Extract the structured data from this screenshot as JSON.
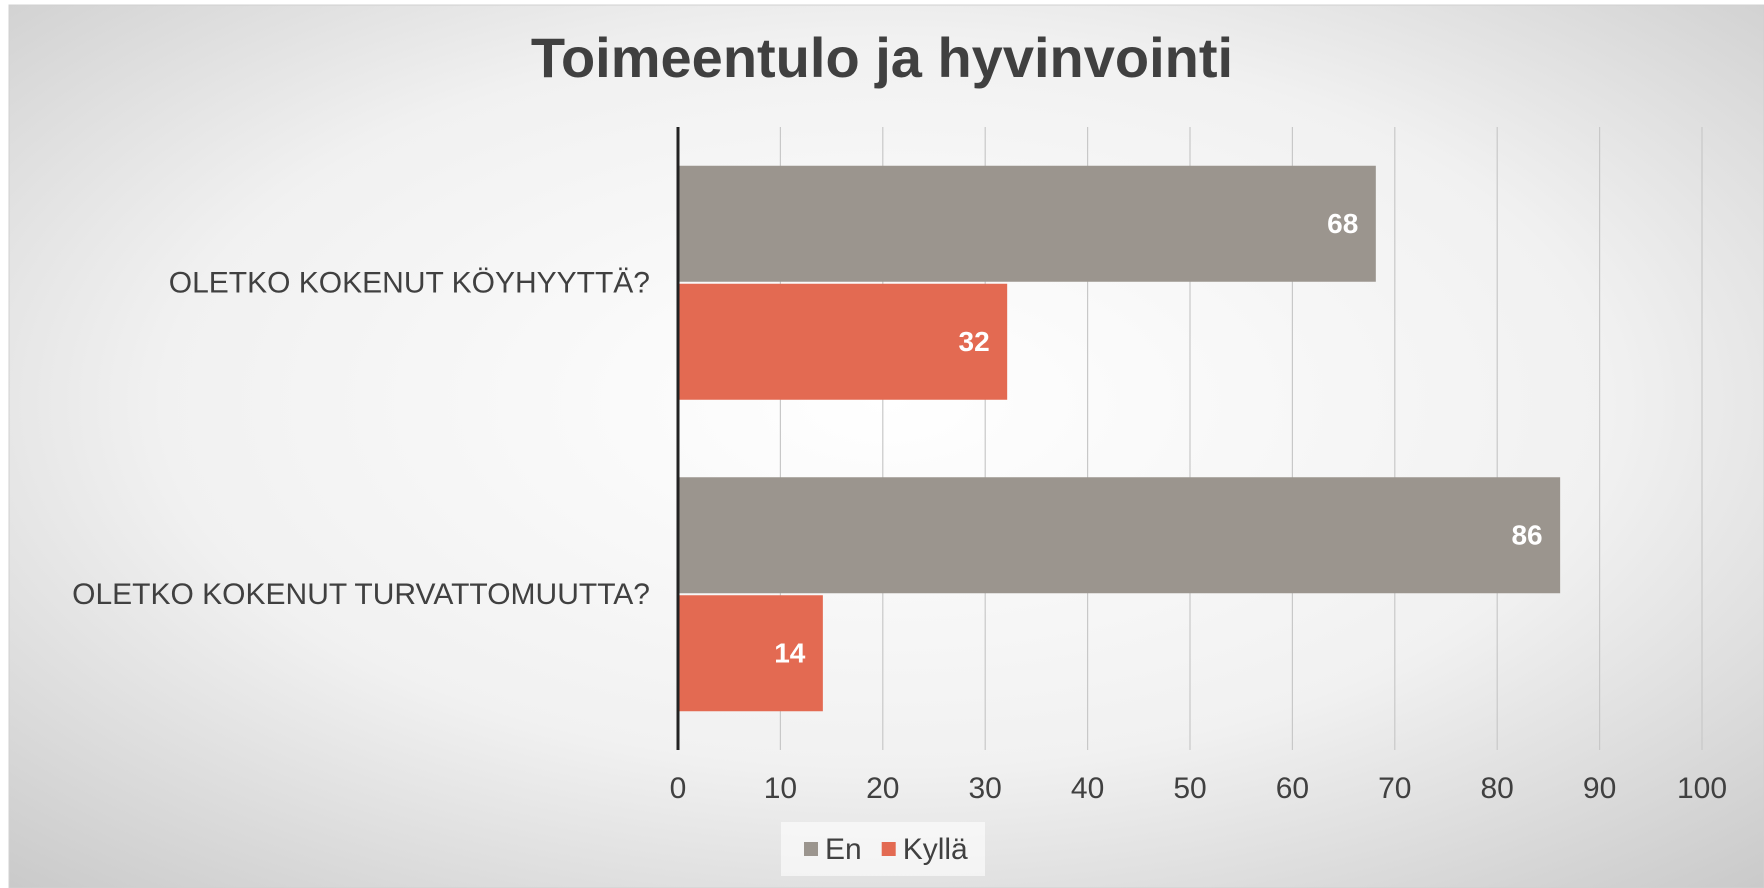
{
  "chart_data": {
    "type": "hbar",
    "title": "Toimeentulo ja hyvinvointi",
    "categories": [
      "OLETKO KOKENUT KÖYHYYTTÄ?",
      "OLETKO KOKENUT TURVATTOMUUTTA?"
    ],
    "series": [
      {
        "name": "En",
        "color": "#9b958e",
        "values": [
          68,
          86
        ]
      },
      {
        "name": "Kyllä",
        "color": "#e36a52",
        "values": [
          32,
          14
        ]
      }
    ],
    "xlim": [
      0,
      100
    ],
    "xticks": [
      0,
      10,
      20,
      30,
      40,
      50,
      60,
      70,
      80,
      90,
      100
    ],
    "grid": true,
    "legend": "bottom"
  }
}
